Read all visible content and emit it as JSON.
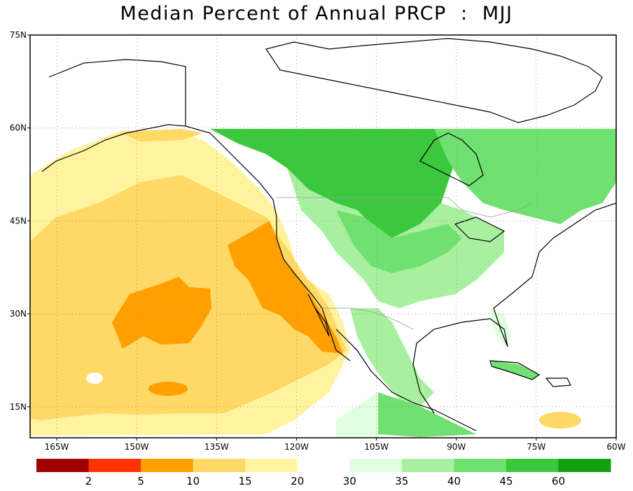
{
  "title": "Median Percent of Annual PRCP  :  MJJ",
  "map": {
    "projection": "latlon",
    "lon_range": [
      -170,
      -60
    ],
    "lat_range": [
      10,
      75
    ],
    "lat_ticks": [
      {
        "value": 75,
        "label": "75N"
      },
      {
        "value": 60,
        "label": "60N"
      },
      {
        "value": 45,
        "label": "45N"
      },
      {
        "value": 30,
        "label": "30N"
      },
      {
        "value": 15,
        "label": "15N"
      }
    ],
    "lon_ticks": [
      {
        "value": -165,
        "label": "165W"
      },
      {
        "value": -150,
        "label": "150W"
      },
      {
        "value": -135,
        "label": "135W"
      },
      {
        "value": -120,
        "label": "120W"
      },
      {
        "value": -105,
        "label": "105W"
      },
      {
        "value": -90,
        "label": "90W"
      },
      {
        "value": -75,
        "label": "75W"
      },
      {
        "value": -60,
        "label": "60W"
      }
    ],
    "grid": true,
    "data_coverage_north_limit": 60
  },
  "colorbar": {
    "bins": [
      {
        "color": "#a00000"
      },
      {
        "color": "#ff3300"
      },
      {
        "color": "#ffa000"
      },
      {
        "color": "#ffd966"
      },
      {
        "color": "#fff3a0"
      },
      {
        "color": "#ffffff"
      },
      {
        "color": "#e0ffe0"
      },
      {
        "color": "#a8f0a0"
      },
      {
        "color": "#70e070"
      },
      {
        "color": "#3cc83c"
      },
      {
        "color": "#12a012"
      }
    ],
    "labels": [
      "2",
      "5",
      "10",
      "15",
      "20",
      "30",
      "35",
      "40",
      "45",
      "60"
    ]
  }
}
